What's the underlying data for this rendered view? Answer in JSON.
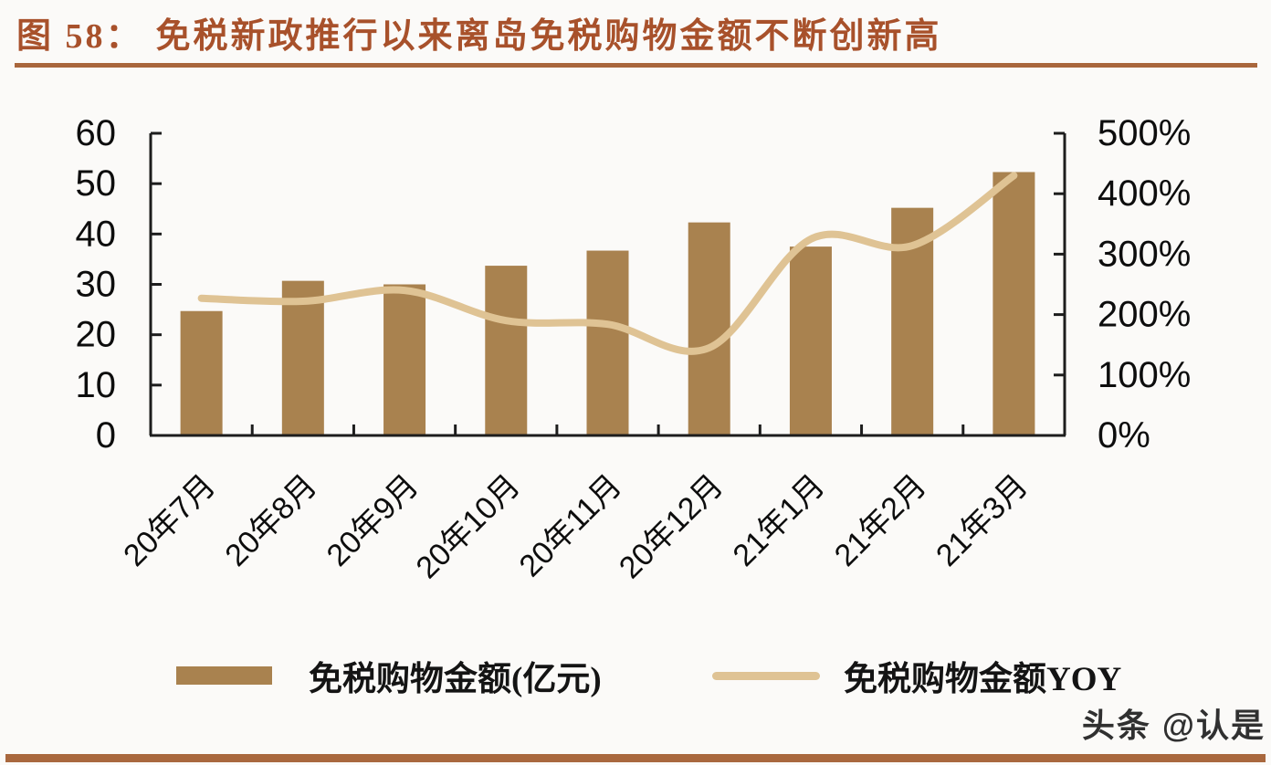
{
  "header": {
    "figure_label": "图 58：",
    "title": "免税新政推行以来离岛免税购物金额不断创新高",
    "title_color": "#A8512B",
    "divider_color": "#A9663C"
  },
  "chart_data": {
    "type": "combo",
    "title": "免税新政推行以来离岛免税购物金额不断创新高",
    "categories": [
      "20年7月",
      "20年8月",
      "20年9月",
      "20年10月",
      "20年11月",
      "20年12月",
      "21年1月",
      "21年2月",
      "21年3月"
    ],
    "series": [
      {
        "name": "免税购物金额(亿元)",
        "type": "bar",
        "axis": "left",
        "color": "#A9824F",
        "values": [
          24.7,
          30.7,
          30.0,
          33.7,
          36.7,
          42.3,
          37.5,
          45.2,
          52.3
        ]
      },
      {
        "name": "免税购物金额YOY",
        "type": "line",
        "axis": "right",
        "color": "#DFC394",
        "values": [
          227,
          222,
          240,
          190,
          184,
          145,
          325,
          314,
          430
        ],
        "unit": "%"
      }
    ],
    "left_axis": {
      "min": 0,
      "max": 60,
      "step": 10,
      "ticks": [
        "0",
        "10",
        "20",
        "30",
        "40",
        "50",
        "60"
      ]
    },
    "right_axis": {
      "min": 0,
      "max": 500,
      "step": 100,
      "ticks": [
        "0%",
        "100%",
        "200%",
        "300%",
        "400%",
        "500%"
      ]
    },
    "grid": false,
    "legend_position": "bottom"
  },
  "legend": {
    "items": [
      {
        "label": "免税购物金额(亿元)",
        "swatch": "bar",
        "color": "#A9824F"
      },
      {
        "label": "免税购物金额YOY",
        "swatch": "line",
        "color": "#DFC394"
      }
    ]
  },
  "watermark": {
    "text": "头条 @认是"
  },
  "footer": {
    "band_color": "#A9683E"
  }
}
